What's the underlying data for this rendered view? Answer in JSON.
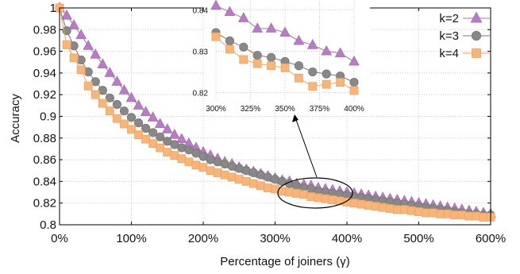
{
  "chart_data": {
    "type": "line",
    "xlabel": "Percentage of joiners (γ)",
    "ylabel": "Accuracy",
    "x_ticks": [
      "0%",
      "100%",
      "200%",
      "300%",
      "400%",
      "500%",
      "600%"
    ],
    "y_ticks": [
      "0.8",
      "0.82",
      "0.84",
      "0.86",
      "0.88",
      "0.9",
      "0.92",
      "0.94",
      "0.96",
      "0.98",
      "1"
    ],
    "xlim": [
      0,
      600
    ],
    "ylim": [
      0.8,
      1.0
    ],
    "grid": true,
    "legend_position": "top-right",
    "x": [
      0,
      10,
      20,
      30,
      40,
      50,
      60,
      70,
      80,
      90,
      100,
      110,
      120,
      130,
      140,
      150,
      160,
      170,
      180,
      190,
      200,
      210,
      220,
      230,
      240,
      250,
      260,
      270,
      280,
      290,
      300,
      310,
      320,
      330,
      340,
      350,
      360,
      370,
      380,
      390,
      400,
      410,
      420,
      430,
      440,
      450,
      460,
      470,
      480,
      490,
      500,
      510,
      520,
      530,
      540,
      550,
      560,
      570,
      580,
      590,
      600
    ],
    "series": [
      {
        "name": "k=2",
        "color": "#a86fb4",
        "marker": "triangle",
        "values": [
          1.0,
          0.993,
          0.984,
          0.975,
          0.965,
          0.957,
          0.948,
          0.94,
          0.932,
          0.924,
          0.917,
          0.91,
          0.904,
          0.899,
          0.893,
          0.888,
          0.883,
          0.879,
          0.875,
          0.871,
          0.867,
          0.864,
          0.861,
          0.858,
          0.856,
          0.853,
          0.851,
          0.849,
          0.847,
          0.845,
          0.843,
          0.841,
          0.84,
          0.838,
          0.837,
          0.836,
          0.834,
          0.833,
          0.832,
          0.831,
          0.83,
          0.829,
          0.828,
          0.827,
          0.826,
          0.825,
          0.824,
          0.823,
          0.822,
          0.821,
          0.82,
          0.819,
          0.818,
          0.817,
          0.816,
          0.815,
          0.814,
          0.813,
          0.812,
          0.811,
          0.81
        ]
      },
      {
        "name": "k=3",
        "color": "#777777",
        "marker": "circle",
        "values": [
          1.0,
          0.979,
          0.965,
          0.952,
          0.941,
          0.932,
          0.924,
          0.917,
          0.911,
          0.905,
          0.899,
          0.894,
          0.889,
          0.885,
          0.881,
          0.877,
          0.874,
          0.871,
          0.869,
          0.866,
          0.863,
          0.86,
          0.858,
          0.856,
          0.854,
          0.852,
          0.85,
          0.848,
          0.846,
          0.844,
          0.842,
          0.84,
          0.838,
          0.836,
          0.834,
          0.833,
          0.831,
          0.83,
          0.829,
          0.828,
          0.827,
          0.826,
          0.825,
          0.824,
          0.823,
          0.822,
          0.821,
          0.82,
          0.819,
          0.818,
          0.817,
          0.816,
          0.815,
          0.814,
          0.813,
          0.812,
          0.811,
          0.81,
          0.81,
          0.809,
          0.809
        ]
      },
      {
        "name": "k=4",
        "color": "#f2a25c",
        "marker": "square",
        "values": [
          1.0,
          0.966,
          0.954,
          0.943,
          0.928,
          0.92,
          0.912,
          0.905,
          0.898,
          0.893,
          0.888,
          0.883,
          0.879,
          0.875,
          0.871,
          0.867,
          0.864,
          0.861,
          0.858,
          0.855,
          0.853,
          0.85,
          0.848,
          0.846,
          0.844,
          0.842,
          0.84,
          0.838,
          0.836,
          0.834,
          0.833,
          0.831,
          0.83,
          0.829,
          0.828,
          0.826,
          0.825,
          0.824,
          0.823,
          0.822,
          0.821,
          0.82,
          0.819,
          0.818,
          0.817,
          0.816,
          0.815,
          0.814,
          0.814,
          0.813,
          0.812,
          0.811,
          0.811,
          0.81,
          0.81,
          0.809,
          0.809,
          0.808,
          0.808,
          0.807,
          0.807
        ]
      }
    ],
    "inset": {
      "x_ticks": [
        "300%",
        "325%",
        "350%",
        "375%",
        "400%"
      ],
      "y_ticks": [
        "0.82",
        "0.83",
        "0.84"
      ],
      "xlim": [
        300,
        400
      ],
      "ylim": [
        0.818,
        0.842
      ],
      "x": [
        300,
        310,
        320,
        330,
        340,
        350,
        360,
        370,
        380,
        390,
        400
      ],
      "series": [
        {
          "name": "k=2",
          "values": [
            0.841,
            0.8395,
            0.838,
            0.8355,
            0.8355,
            0.8345,
            0.8325,
            0.8315,
            0.83,
            0.8295,
            0.8275
          ]
        },
        {
          "name": "k=3",
          "values": [
            0.8345,
            0.8325,
            0.831,
            0.829,
            0.8285,
            0.8275,
            0.8265,
            0.825,
            0.8245,
            0.824,
            0.8225
          ]
        },
        {
          "name": "k=4",
          "values": [
            0.8335,
            0.8305,
            0.828,
            0.827,
            0.8265,
            0.826,
            0.8235,
            0.8215,
            0.822,
            0.8225,
            0.8205
          ]
        }
      ]
    }
  }
}
